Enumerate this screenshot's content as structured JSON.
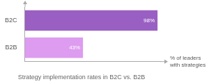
{
  "chart_data": {
    "type": "bar",
    "orientation": "horizontal",
    "title": "Strategy implementation rates in B2C vs. B2B",
    "x_label": "% of leaders with strategies",
    "categories": [
      "B2C",
      "B2B"
    ],
    "values": [
      98,
      43
    ],
    "value_labels": [
      "98%",
      "43%"
    ],
    "colors": [
      "#9a5fc2",
      "#dd9cef"
    ],
    "xlim": [
      0,
      100
    ],
    "grid": false,
    "data_labels": true,
    "tick_labels": "y"
  }
}
